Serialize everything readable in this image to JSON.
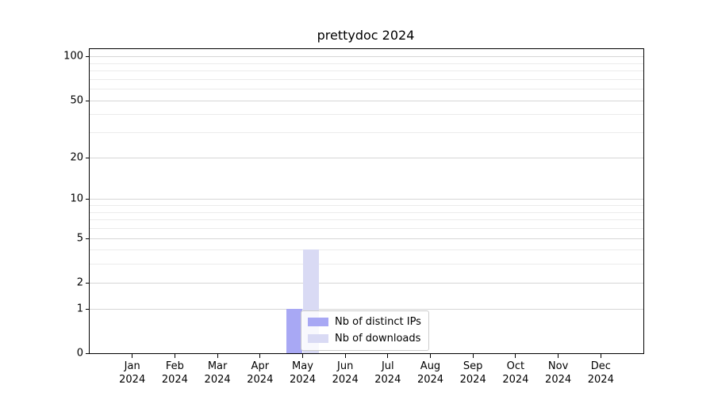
{
  "title": "prettydoc 2024",
  "chart_data": {
    "type": "bar",
    "title": "prettydoc 2024",
    "categories": [
      "Jan",
      "Feb",
      "Mar",
      "Apr",
      "May",
      "Jun",
      "Jul",
      "Aug",
      "Sep",
      "Oct",
      "Nov",
      "Dec"
    ],
    "x_tick_labels": [
      [
        "Jan",
        "2024"
      ],
      [
        "Feb",
        "2024"
      ],
      [
        "Mar",
        "2024"
      ],
      [
        "Apr",
        "2024"
      ],
      [
        "May",
        "2024"
      ],
      [
        "Jun",
        "2024"
      ],
      [
        "Jul",
        "2024"
      ],
      [
        "Aug",
        "2024"
      ],
      [
        "Sep",
        "2024"
      ],
      [
        "Oct",
        "2024"
      ],
      [
        "Nov",
        "2024"
      ],
      [
        "Dec",
        "2024"
      ]
    ],
    "series": [
      {
        "name": "Nb of distinct IPs",
        "color": "#a8a8f4",
        "values": [
          0,
          0,
          0,
          0,
          1,
          0,
          0,
          0,
          0,
          0,
          0,
          0
        ]
      },
      {
        "name": "Nb of downloads",
        "color": "#d9daf4",
        "values": [
          0,
          0,
          0,
          0,
          4,
          0,
          0,
          0,
          0,
          0,
          0,
          0
        ]
      }
    ],
    "yscale": "log1p",
    "ylim": [
      0,
      112
    ],
    "y_major_ticks": [
      0,
      1,
      2,
      5,
      10,
      20,
      50,
      100
    ],
    "y_minor_gridlines": [
      3,
      4,
      6,
      7,
      8,
      9,
      30,
      40,
      60,
      70,
      80,
      90
    ],
    "grid": true,
    "legend_position": "inside-lower-center",
    "colors": {
      "major_grid": "#d6d6d6",
      "minor_grid": "#ebebeb",
      "axis": "#000000",
      "legend_border": "#cccccc"
    }
  }
}
